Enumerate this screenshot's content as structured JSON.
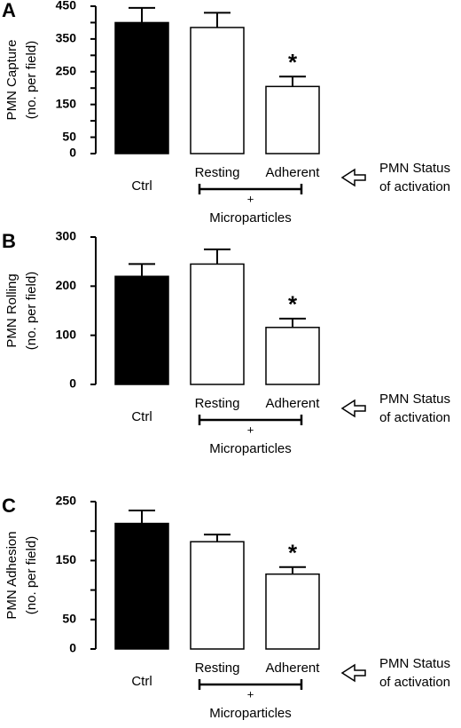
{
  "chart_data": [
    {
      "type": "bar",
      "panel": "A",
      "ylabel": [
        "PMN Capture",
        "(no. per field)"
      ],
      "categories": [
        "Ctrl",
        "Resting",
        "Adherent"
      ],
      "series": [
        {
          "values": [
            400,
            385,
            205
          ],
          "errors": [
            45,
            45,
            30
          ],
          "colors": [
            "#000000",
            "#ffffff",
            "#ffffff"
          ]
        }
      ],
      "ylim": [
        0,
        450
      ],
      "yticks": [
        0,
        50,
        150,
        250,
        350,
        450
      ],
      "minor_yticks": [
        100,
        200,
        300,
        400
      ],
      "annotation": {
        "category": "Adherent",
        "text": "*"
      },
      "group_label": "Microparticles",
      "group_symbol": "+",
      "status_label": [
        "PMN Status",
        "of activation"
      ]
    },
    {
      "type": "bar",
      "panel": "B",
      "ylabel": [
        "PMN Rolling",
        "(no. per field)"
      ],
      "categories": [
        "Ctrl",
        "Resting",
        "Adherent"
      ],
      "series": [
        {
          "values": [
            220,
            245,
            116
          ],
          "errors": [
            25,
            30,
            18
          ],
          "colors": [
            "#000000",
            "#ffffff",
            "#ffffff"
          ]
        }
      ],
      "ylim": [
        0,
        300
      ],
      "yticks": [
        0,
        100,
        200,
        300
      ],
      "minor_yticks": [],
      "annotation": {
        "category": "Adherent",
        "text": "*"
      },
      "group_label": "Microparticles",
      "group_symbol": "+",
      "status_label": [
        "PMN Status",
        "of activation"
      ]
    },
    {
      "type": "bar",
      "panel": "C",
      "ylabel": [
        "PMN Adhesion",
        "(no. per field)"
      ],
      "categories": [
        "Ctrl",
        "Resting",
        "Adherent"
      ],
      "series": [
        {
          "values": [
            213,
            182,
            127
          ],
          "errors": [
            22,
            12,
            12
          ],
          "colors": [
            "#000000",
            "#ffffff",
            "#ffffff"
          ]
        }
      ],
      "ylim": [
        0,
        250
      ],
      "yticks": [
        0,
        50,
        150,
        250
      ],
      "minor_yticks": [
        100,
        200
      ],
      "annotation": {
        "category": "Adherent",
        "text": "*"
      },
      "group_label": "Microparticles",
      "group_symbol": "+",
      "status_label": [
        "PMN Status",
        "of activation"
      ]
    }
  ]
}
